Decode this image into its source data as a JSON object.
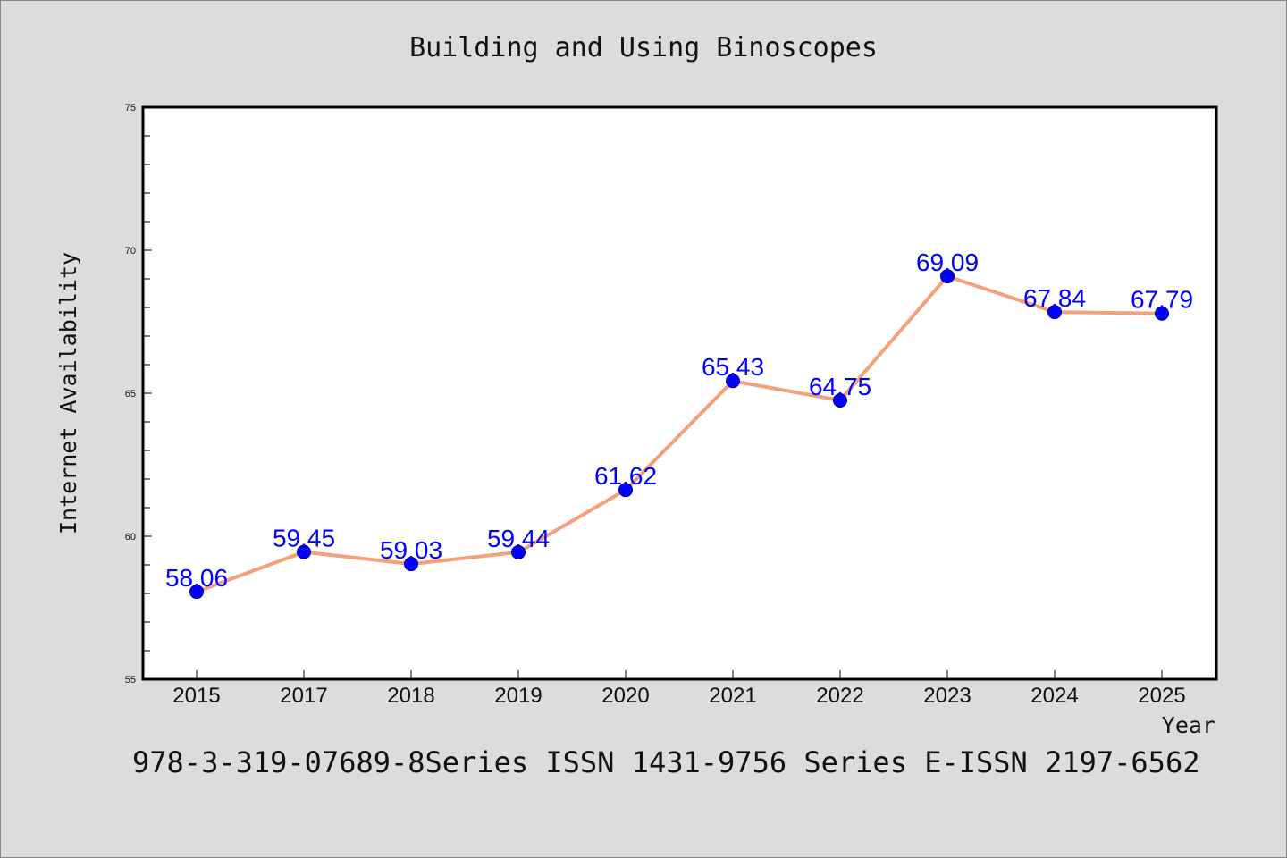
{
  "chart_data": {
    "type": "line",
    "title": "Building and Using Binoscopes",
    "xlabel": "Year",
    "ylabel": "Internet Availability",
    "categories": [
      "2015",
      "2017",
      "2018",
      "2019",
      "2020",
      "2021",
      "2022",
      "2023",
      "2024",
      "2025"
    ],
    "series": [
      {
        "values": [
          58.06,
          59.45,
          59.03,
          59.44,
          61.62,
          65.43,
          64.75,
          69.09,
          67.84,
          67.79
        ],
        "line_color": "#f4a07a",
        "marker_color": "#0000ff"
      }
    ],
    "data_labels": [
      "58.06",
      "59.45",
      "59.03",
      "59.44",
      "61.62",
      "65.43",
      "64.75",
      "69.09",
      "67.84",
      "67.79"
    ],
    "yticks": [
      55,
      60,
      65,
      70,
      75
    ],
    "ylim": [
      55,
      75
    ],
    "grid": false,
    "legend": false,
    "footer": "978-3-319-07689-8Series ISSN 1431-9756 Series E-ISSN 2197-6562"
  },
  "colors": {
    "page_background": "#dcdcdc",
    "plot_background": "#ffffff",
    "line": "#f4a07a",
    "marker": "#0000ff",
    "data_label": "#0000ff"
  }
}
